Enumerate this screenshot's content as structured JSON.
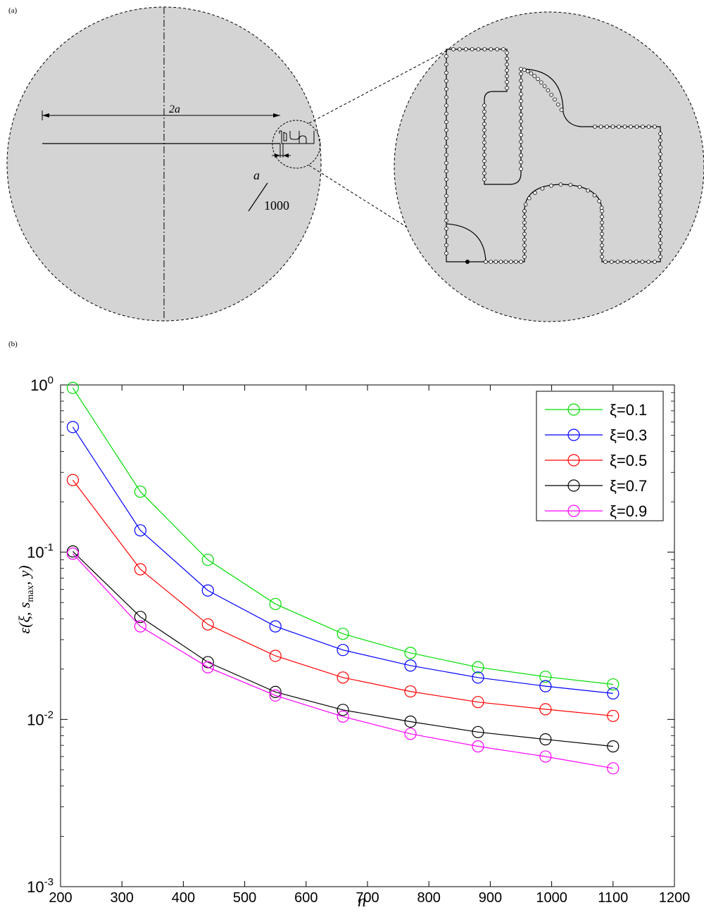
{
  "panel_a": {
    "label": "(a)",
    "dim_2a": "2a",
    "dim_a": "a",
    "dim_1000": "1000"
  },
  "panel_b": {
    "label": "(b)"
  },
  "chart_data": {
    "type": "line",
    "xlabel": "n",
    "ylabel": "ε(ξ, s_max, y)",
    "xlim": [
      200,
      1200
    ],
    "ylim": [
      0.001,
      1
    ],
    "yscale": "log",
    "x_ticks": [
      200,
      300,
      400,
      500,
      600,
      700,
      800,
      900,
      1000,
      1100,
      1200
    ],
    "y_ticks": [
      {
        "value": 1,
        "base": "10",
        "exp": "0"
      },
      {
        "value": 0.1,
        "base": "10",
        "exp": "-1"
      },
      {
        "value": 0.01,
        "base": "10",
        "exp": "-2"
      },
      {
        "value": 0.001,
        "base": "10",
        "exp": "-3"
      }
    ],
    "grid": false,
    "legend_position": "top-right",
    "x": [
      220,
      330,
      440,
      550,
      660,
      770,
      880,
      990,
      1100
    ],
    "series": [
      {
        "name": "ξ=0.1",
        "color": "#00dd00",
        "values": [
          0.96,
          0.23,
          0.09,
          0.049,
          0.0325,
          0.025,
          0.0205,
          0.018,
          0.0162
        ]
      },
      {
        "name": "ξ=0.3",
        "color": "#0000ff",
        "values": [
          0.56,
          0.135,
          0.059,
          0.036,
          0.026,
          0.021,
          0.0178,
          0.0158,
          0.0143
        ]
      },
      {
        "name": "ξ=0.5",
        "color": "#ff0000",
        "values": [
          0.27,
          0.079,
          0.037,
          0.024,
          0.0178,
          0.0147,
          0.0127,
          0.0115,
          0.0105
        ]
      },
      {
        "name": "ξ=0.7",
        "color": "#000000",
        "values": [
          0.101,
          0.041,
          0.022,
          0.0146,
          0.0114,
          0.0097,
          0.0084,
          0.0076,
          0.0069
        ]
      },
      {
        "name": "ξ=0.9",
        "color": "#ff00ff",
        "values": [
          0.098,
          0.036,
          0.0205,
          0.0139,
          0.0104,
          0.0082,
          0.0069,
          0.006,
          0.0051
        ]
      }
    ]
  }
}
